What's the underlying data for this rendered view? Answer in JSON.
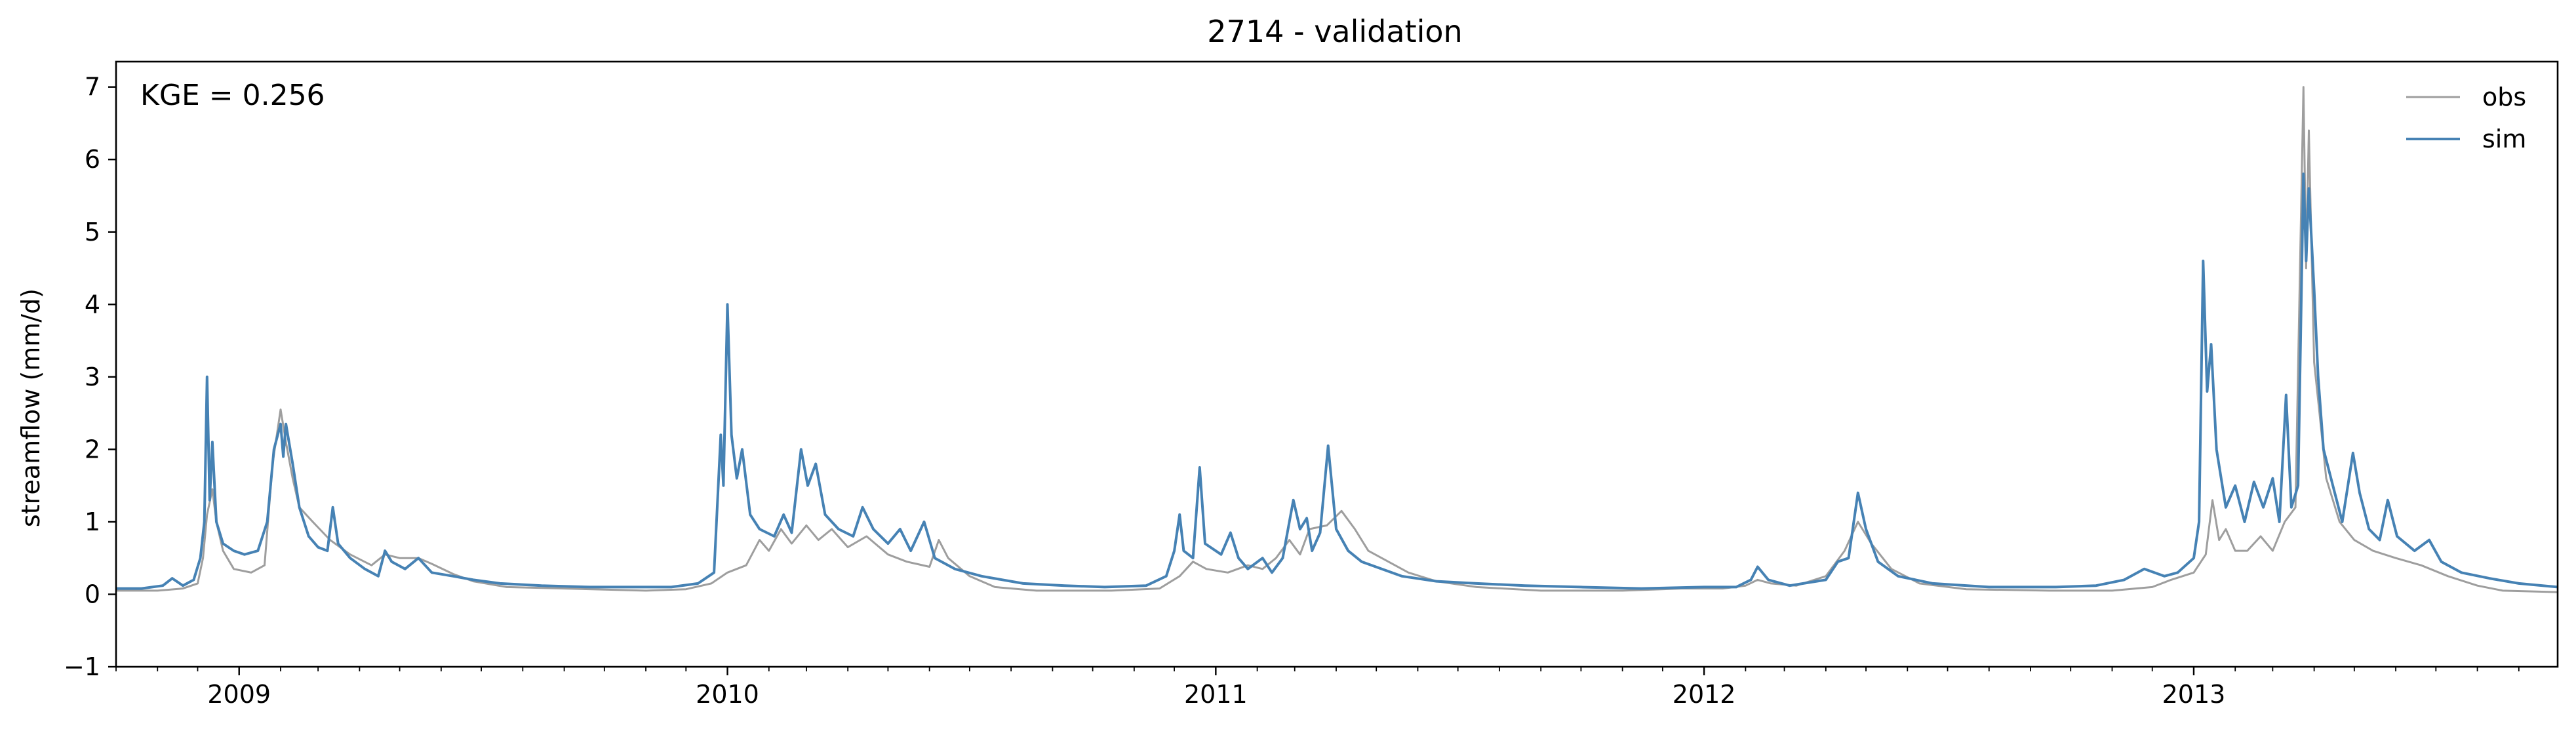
{
  "chart_data": {
    "type": "line",
    "title": "2714 - validation",
    "xlabel": "",
    "ylabel": "streamflow (mm/d)",
    "xlim": [
      "2008-10-01",
      "2013-09-30"
    ],
    "ylim": [
      -1,
      7.35
    ],
    "yticks": [
      -1,
      0,
      1,
      2,
      3,
      4,
      5,
      6,
      7
    ],
    "xticks": [
      {
        "date": "2009-01-01",
        "label": "2009"
      },
      {
        "date": "2010-01-01",
        "label": "2010"
      },
      {
        "date": "2011-01-01",
        "label": "2011"
      },
      {
        "date": "2012-01-01",
        "label": "2012"
      },
      {
        "date": "2013-01-01",
        "label": "2013"
      }
    ],
    "grid": false,
    "legend": "top-right",
    "annotation": "KGE = 0.256",
    "series": [
      {
        "name": "obs",
        "color": "#9e9e9e",
        "points": [
          [
            "2008-10-01",
            0.05
          ],
          [
            "2008-11-01",
            0.05
          ],
          [
            "2008-11-20",
            0.08
          ],
          [
            "2008-12-01",
            0.15
          ],
          [
            "2008-12-05",
            0.5
          ],
          [
            "2008-12-08",
            1.1
          ],
          [
            "2008-12-12",
            1.45
          ],
          [
            "2008-12-15",
            1.0
          ],
          [
            "2008-12-20",
            0.6
          ],
          [
            "2008-12-28",
            0.35
          ],
          [
            "2009-01-10",
            0.3
          ],
          [
            "2009-01-20",
            0.4
          ],
          [
            "2009-01-26",
            1.8
          ],
          [
            "2009-02-01",
            2.55
          ],
          [
            "2009-02-05",
            2.1
          ],
          [
            "2009-02-10",
            1.6
          ],
          [
            "2009-02-15",
            1.2
          ],
          [
            "2009-02-25",
            1.0
          ],
          [
            "2009-03-10",
            0.75
          ],
          [
            "2009-03-25",
            0.55
          ],
          [
            "2009-04-10",
            0.4
          ],
          [
            "2009-04-20",
            0.55
          ],
          [
            "2009-05-01",
            0.5
          ],
          [
            "2009-05-15",
            0.5
          ],
          [
            "2009-05-25",
            0.42
          ],
          [
            "2009-06-10",
            0.28
          ],
          [
            "2009-06-25",
            0.18
          ],
          [
            "2009-07-20",
            0.1
          ],
          [
            "2009-09-01",
            0.08
          ],
          [
            "2009-11-01",
            0.05
          ],
          [
            "2009-12-01",
            0.07
          ],
          [
            "2009-12-20",
            0.15
          ],
          [
            "2010-01-01",
            0.3
          ],
          [
            "2010-01-15",
            0.4
          ],
          [
            "2010-01-25",
            0.75
          ],
          [
            "2010-02-01",
            0.6
          ],
          [
            "2010-02-10",
            0.9
          ],
          [
            "2010-02-18",
            0.7
          ],
          [
            "2010-03-01",
            0.95
          ],
          [
            "2010-03-10",
            0.75
          ],
          [
            "2010-03-20",
            0.9
          ],
          [
            "2010-04-01",
            0.65
          ],
          [
            "2010-04-15",
            0.8
          ],
          [
            "2010-05-01",
            0.55
          ],
          [
            "2010-05-15",
            0.45
          ],
          [
            "2010-06-01",
            0.38
          ],
          [
            "2010-06-08",
            0.75
          ],
          [
            "2010-06-15",
            0.5
          ],
          [
            "2010-07-01",
            0.25
          ],
          [
            "2010-07-20",
            0.1
          ],
          [
            "2010-08-20",
            0.05
          ],
          [
            "2010-10-15",
            0.05
          ],
          [
            "2010-11-20",
            0.08
          ],
          [
            "2010-12-05",
            0.25
          ],
          [
            "2010-12-15",
            0.45
          ],
          [
            "2010-12-25",
            0.35
          ],
          [
            "2011-01-10",
            0.3
          ],
          [
            "2011-01-25",
            0.4
          ],
          [
            "2011-02-05",
            0.35
          ],
          [
            "2011-02-15",
            0.5
          ],
          [
            "2011-02-25",
            0.75
          ],
          [
            "2011-03-05",
            0.55
          ],
          [
            "2011-03-12",
            0.9
          ],
          [
            "2011-03-25",
            0.95
          ],
          [
            "2011-04-05",
            1.15
          ],
          [
            "2011-04-15",
            0.9
          ],
          [
            "2011-04-25",
            0.6
          ],
          [
            "2011-05-10",
            0.45
          ],
          [
            "2011-05-25",
            0.3
          ],
          [
            "2011-06-15",
            0.18
          ],
          [
            "2011-07-15",
            0.1
          ],
          [
            "2011-09-01",
            0.05
          ],
          [
            "2011-11-01",
            0.05
          ],
          [
            "2011-12-15",
            0.08
          ],
          [
            "2012-01-15",
            0.08
          ],
          [
            "2012-02-01",
            0.12
          ],
          [
            "2012-02-10",
            0.2
          ],
          [
            "2012-02-20",
            0.15
          ],
          [
            "2012-03-10",
            0.12
          ],
          [
            "2012-04-01",
            0.25
          ],
          [
            "2012-04-15",
            0.6
          ],
          [
            "2012-04-25",
            1.0
          ],
          [
            "2012-05-05",
            0.7
          ],
          [
            "2012-05-20",
            0.35
          ],
          [
            "2012-06-10",
            0.15
          ],
          [
            "2012-07-15",
            0.07
          ],
          [
            "2012-09-15",
            0.05
          ],
          [
            "2012-11-01",
            0.05
          ],
          [
            "2012-12-01",
            0.1
          ],
          [
            "2012-12-15",
            0.2
          ],
          [
            "2013-01-01",
            0.3
          ],
          [
            "2013-01-10",
            0.55
          ],
          [
            "2013-01-15",
            1.3
          ],
          [
            "2013-01-20",
            0.75
          ],
          [
            "2013-01-25",
            0.9
          ],
          [
            "2013-02-01",
            0.6
          ],
          [
            "2013-02-10",
            0.6
          ],
          [
            "2013-02-20",
            0.8
          ],
          [
            "2013-03-01",
            0.6
          ],
          [
            "2013-03-10",
            1.0
          ],
          [
            "2013-03-18",
            1.2
          ],
          [
            "2013-03-24",
            7.0
          ],
          [
            "2013-03-26",
            4.5
          ],
          [
            "2013-03-28",
            6.4
          ],
          [
            "2013-04-01",
            3.2
          ],
          [
            "2013-04-05",
            2.5
          ],
          [
            "2013-04-10",
            1.6
          ],
          [
            "2013-04-20",
            1.0
          ],
          [
            "2013-05-01",
            0.75
          ],
          [
            "2013-05-15",
            0.6
          ],
          [
            "2013-06-01",
            0.5
          ],
          [
            "2013-06-20",
            0.4
          ],
          [
            "2013-07-10",
            0.25
          ],
          [
            "2013-08-01",
            0.12
          ],
          [
            "2013-08-20",
            0.05
          ],
          [
            "2013-09-30",
            0.03
          ]
        ]
      },
      {
        "name": "sim",
        "color": "#4682b4",
        "points": [
          [
            "2008-10-01",
            0.08
          ],
          [
            "2008-10-20",
            0.08
          ],
          [
            "2008-11-05",
            0.12
          ],
          [
            "2008-11-12",
            0.22
          ],
          [
            "2008-11-20",
            0.12
          ],
          [
            "2008-11-28",
            0.2
          ],
          [
            "2008-12-03",
            0.5
          ],
          [
            "2008-12-06",
            1.0
          ],
          [
            "2008-12-08",
            3.0
          ],
          [
            "2008-12-10",
            1.3
          ],
          [
            "2008-12-12",
            2.1
          ],
          [
            "2008-12-15",
            1.0
          ],
          [
            "2008-12-20",
            0.7
          ],
          [
            "2008-12-28",
            0.6
          ],
          [
            "2009-01-05",
            0.55
          ],
          [
            "2009-01-15",
            0.6
          ],
          [
            "2009-01-22",
            1.0
          ],
          [
            "2009-01-27",
            2.0
          ],
          [
            "2009-02-01",
            2.35
          ],
          [
            "2009-02-03",
            1.9
          ],
          [
            "2009-02-05",
            2.35
          ],
          [
            "2009-02-10",
            1.8
          ],
          [
            "2009-02-15",
            1.2
          ],
          [
            "2009-02-22",
            0.8
          ],
          [
            "2009-03-01",
            0.65
          ],
          [
            "2009-03-08",
            0.6
          ],
          [
            "2009-03-12",
            1.2
          ],
          [
            "2009-03-16",
            0.7
          ],
          [
            "2009-03-25",
            0.5
          ],
          [
            "2009-04-05",
            0.35
          ],
          [
            "2009-04-15",
            0.25
          ],
          [
            "2009-04-20",
            0.6
          ],
          [
            "2009-04-25",
            0.45
          ],
          [
            "2009-05-05",
            0.35
          ],
          [
            "2009-05-15",
            0.5
          ],
          [
            "2009-05-25",
            0.3
          ],
          [
            "2009-06-10",
            0.25
          ],
          [
            "2009-06-25",
            0.2
          ],
          [
            "2009-07-15",
            0.15
          ],
          [
            "2009-08-15",
            0.12
          ],
          [
            "2009-09-20",
            0.1
          ],
          [
            "2009-10-20",
            0.1
          ],
          [
            "2009-11-20",
            0.1
          ],
          [
            "2009-12-10",
            0.15
          ],
          [
            "2009-12-22",
            0.3
          ],
          [
            "2009-12-27",
            2.2
          ],
          [
            "2009-12-29",
            1.5
          ],
          [
            "2010-01-01",
            4.0
          ],
          [
            "2010-01-04",
            2.2
          ],
          [
            "2010-01-08",
            1.6
          ],
          [
            "2010-01-12",
            2.0
          ],
          [
            "2010-01-18",
            1.1
          ],
          [
            "2010-01-25",
            0.9
          ],
          [
            "2010-02-05",
            0.8
          ],
          [
            "2010-02-12",
            1.1
          ],
          [
            "2010-02-18",
            0.85
          ],
          [
            "2010-02-25",
            2.0
          ],
          [
            "2010-03-02",
            1.5
          ],
          [
            "2010-03-08",
            1.8
          ],
          [
            "2010-03-15",
            1.1
          ],
          [
            "2010-03-25",
            0.9
          ],
          [
            "2010-04-05",
            0.8
          ],
          [
            "2010-04-12",
            1.2
          ],
          [
            "2010-04-20",
            0.9
          ],
          [
            "2010-05-01",
            0.7
          ],
          [
            "2010-05-10",
            0.9
          ],
          [
            "2010-05-18",
            0.6
          ],
          [
            "2010-05-28",
            1.0
          ],
          [
            "2010-06-05",
            0.5
          ],
          [
            "2010-06-20",
            0.35
          ],
          [
            "2010-07-10",
            0.25
          ],
          [
            "2010-08-10",
            0.15
          ],
          [
            "2010-09-10",
            0.12
          ],
          [
            "2010-10-10",
            0.1
          ],
          [
            "2010-11-10",
            0.12
          ],
          [
            "2010-11-25",
            0.25
          ],
          [
            "2010-12-01",
            0.6
          ],
          [
            "2010-12-05",
            1.1
          ],
          [
            "2010-12-08",
            0.6
          ],
          [
            "2010-12-15",
            0.5
          ],
          [
            "2010-12-20",
            1.75
          ],
          [
            "2010-12-24",
            0.7
          ],
          [
            "2011-01-05",
            0.55
          ],
          [
            "2011-01-12",
            0.85
          ],
          [
            "2011-01-18",
            0.5
          ],
          [
            "2011-01-25",
            0.35
          ],
          [
            "2011-02-05",
            0.5
          ],
          [
            "2011-02-12",
            0.3
          ],
          [
            "2011-02-20",
            0.5
          ],
          [
            "2011-02-28",
            1.3
          ],
          [
            "2011-03-05",
            0.9
          ],
          [
            "2011-03-10",
            1.05
          ],
          [
            "2011-03-14",
            0.6
          ],
          [
            "2011-03-20",
            0.85
          ],
          [
            "2011-03-26",
            2.05
          ],
          [
            "2011-04-01",
            0.9
          ],
          [
            "2011-04-10",
            0.6
          ],
          [
            "2011-04-20",
            0.45
          ],
          [
            "2011-05-05",
            0.35
          ],
          [
            "2011-05-20",
            0.25
          ],
          [
            "2011-06-15",
            0.18
          ],
          [
            "2011-07-15",
            0.15
          ],
          [
            "2011-08-20",
            0.12
          ],
          [
            "2011-10-01",
            0.1
          ],
          [
            "2011-11-15",
            0.08
          ],
          [
            "2012-01-01",
            0.1
          ],
          [
            "2012-01-25",
            0.1
          ],
          [
            "2012-02-05",
            0.2
          ],
          [
            "2012-02-10",
            0.38
          ],
          [
            "2012-02-18",
            0.2
          ],
          [
            "2012-03-05",
            0.12
          ],
          [
            "2012-04-01",
            0.2
          ],
          [
            "2012-04-10",
            0.45
          ],
          [
            "2012-04-18",
            0.5
          ],
          [
            "2012-04-25",
            1.4
          ],
          [
            "2012-05-01",
            0.9
          ],
          [
            "2012-05-10",
            0.45
          ],
          [
            "2012-05-25",
            0.25
          ],
          [
            "2012-06-20",
            0.15
          ],
          [
            "2012-08-01",
            0.1
          ],
          [
            "2012-09-20",
            0.1
          ],
          [
            "2012-10-20",
            0.12
          ],
          [
            "2012-11-10",
            0.2
          ],
          [
            "2012-11-25",
            0.35
          ],
          [
            "2012-12-10",
            0.25
          ],
          [
            "2012-12-20",
            0.3
          ],
          [
            "2013-01-01",
            0.5
          ],
          [
            "2013-01-05",
            1.0
          ],
          [
            "2013-01-08",
            4.6
          ],
          [
            "2013-01-11",
            2.8
          ],
          [
            "2013-01-14",
            3.45
          ],
          [
            "2013-01-18",
            2.0
          ],
          [
            "2013-01-25",
            1.2
          ],
          [
            "2013-02-01",
            1.5
          ],
          [
            "2013-02-08",
            1.0
          ],
          [
            "2013-02-15",
            1.55
          ],
          [
            "2013-02-22",
            1.2
          ],
          [
            "2013-03-01",
            1.6
          ],
          [
            "2013-03-06",
            1.0
          ],
          [
            "2013-03-11",
            2.75
          ],
          [
            "2013-03-15",
            1.2
          ],
          [
            "2013-03-20",
            1.5
          ],
          [
            "2013-03-24",
            5.8
          ],
          [
            "2013-03-26",
            4.6
          ],
          [
            "2013-03-28",
            5.6
          ],
          [
            "2013-04-01",
            4.2
          ],
          [
            "2013-04-04",
            3.0
          ],
          [
            "2013-04-08",
            2.0
          ],
          [
            "2013-04-15",
            1.5
          ],
          [
            "2013-04-22",
            1.0
          ],
          [
            "2013-04-30",
            1.95
          ],
          [
            "2013-05-05",
            1.4
          ],
          [
            "2013-05-12",
            0.9
          ],
          [
            "2013-05-20",
            0.75
          ],
          [
            "2013-05-26",
            1.3
          ],
          [
            "2013-06-02",
            0.8
          ],
          [
            "2013-06-15",
            0.6
          ],
          [
            "2013-06-26",
            0.75
          ],
          [
            "2013-07-05",
            0.45
          ],
          [
            "2013-07-20",
            0.3
          ],
          [
            "2013-08-10",
            0.22
          ],
          [
            "2013-09-01",
            0.15
          ],
          [
            "2013-09-30",
            0.1
          ]
        ]
      }
    ]
  }
}
